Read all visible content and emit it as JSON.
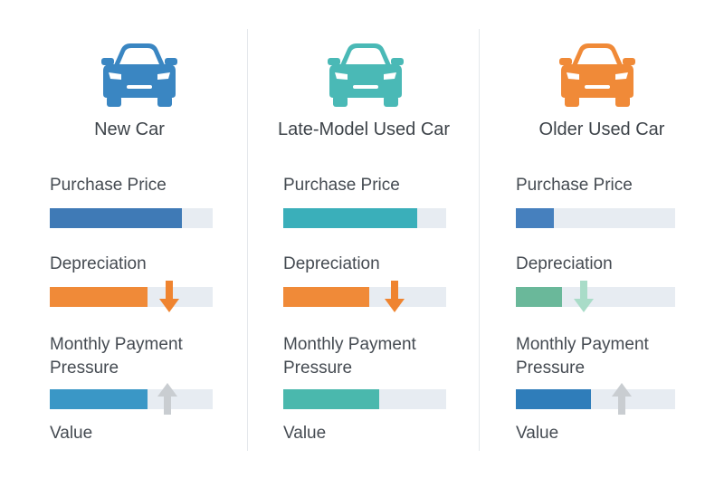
{
  "columns": [
    {
      "title": "New Car",
      "car_color": "#3a86c2",
      "metrics": {
        "purchase_price": {
          "label": "Purchase Price",
          "level": 0.81,
          "color": "#3f7ab6"
        },
        "depreciation": {
          "label": "Depreciation",
          "level": 0.6,
          "color": "#f08a38",
          "arrow": "down",
          "arrow_color": "#ef8430",
          "arrow_icon": "arrow-down-icon"
        },
        "monthly_payment_pressure": {
          "label": "Monthly Payment Pressure",
          "level": 0.6,
          "color": "#3a97c6",
          "arrow": "up",
          "arrow_color": "#c9cdd1",
          "arrow_icon": "arrow-up-icon"
        }
      },
      "value_label": "Value"
    },
    {
      "title": "Late-Model Used Car",
      "car_color": "#4ab9b6",
      "metrics": {
        "purchase_price": {
          "label": "Purchase Price",
          "level": 0.82,
          "color": "#3aafba"
        },
        "depreciation": {
          "label": "Depreciation",
          "level": 0.53,
          "color": "#f08a38",
          "arrow": "down",
          "arrow_color": "#ef8430",
          "arrow_icon": "arrow-down-icon"
        },
        "monthly_payment_pressure": {
          "label": "Monthly Payment Pressure",
          "level": 0.59,
          "color": "#4ab8ad",
          "arrow": null
        }
      },
      "value_label": "Value"
    },
    {
      "title": "Older Used Car",
      "car_color": "#f08a38",
      "metrics": {
        "purchase_price": {
          "label": "Purchase Price",
          "level": 0.24,
          "color": "#4680be"
        },
        "depreciation": {
          "label": "Depreciation",
          "level": 0.29,
          "color": "#6ab89a",
          "arrow": "down",
          "arrow_color": "#a9dcc8",
          "arrow_icon": "arrow-down-icon"
        },
        "monthly_payment_pressure": {
          "label": "Monthly Payment Pressure",
          "level": 0.47,
          "color": "#2f7dba",
          "arrow": "up",
          "arrow_color": "#c9cdd1",
          "arrow_icon": "arrow-up-icon"
        }
      },
      "value_label": "Value"
    }
  ]
}
